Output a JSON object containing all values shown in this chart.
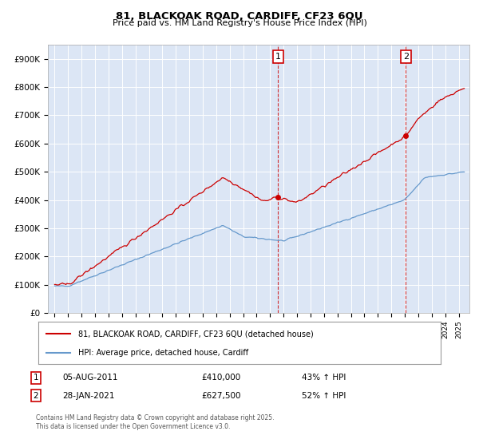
{
  "title_line1": "81, BLACKOAK ROAD, CARDIFF, CF23 6QU",
  "title_line2": "Price paid vs. HM Land Registry's House Price Index (HPI)",
  "legend_label_red": "81, BLACKOAK ROAD, CARDIFF, CF23 6QU (detached house)",
  "legend_label_blue": "HPI: Average price, detached house, Cardiff",
  "marker1_date": "05-AUG-2011",
  "marker1_price": "£410,000",
  "marker1_hpi": "43% ↑ HPI",
  "marker1_x": 2011.59,
  "marker1_y": 410000,
  "marker2_date": "28-JAN-2021",
  "marker2_price": "£627,500",
  "marker2_hpi": "52% ↑ HPI",
  "marker2_x": 2021.08,
  "marker2_y": 627500,
  "ylim_min": 0,
  "ylim_max": 950000,
  "xlim_min": 1994.5,
  "xlim_max": 2025.8,
  "yticks": [
    0,
    100000,
    200000,
    300000,
    400000,
    500000,
    600000,
    700000,
    800000,
    900000
  ],
  "ytick_labels": [
    "£0",
    "£100K",
    "£200K",
    "£300K",
    "£400K",
    "£500K",
    "£600K",
    "£700K",
    "£800K",
    "£900K"
  ],
  "copyright_text": "Contains HM Land Registry data © Crown copyright and database right 2025.\nThis data is licensed under the Open Government Licence v3.0.",
  "red_color": "#cc0000",
  "blue_color": "#6699cc",
  "bg_color": "#dce6f5"
}
